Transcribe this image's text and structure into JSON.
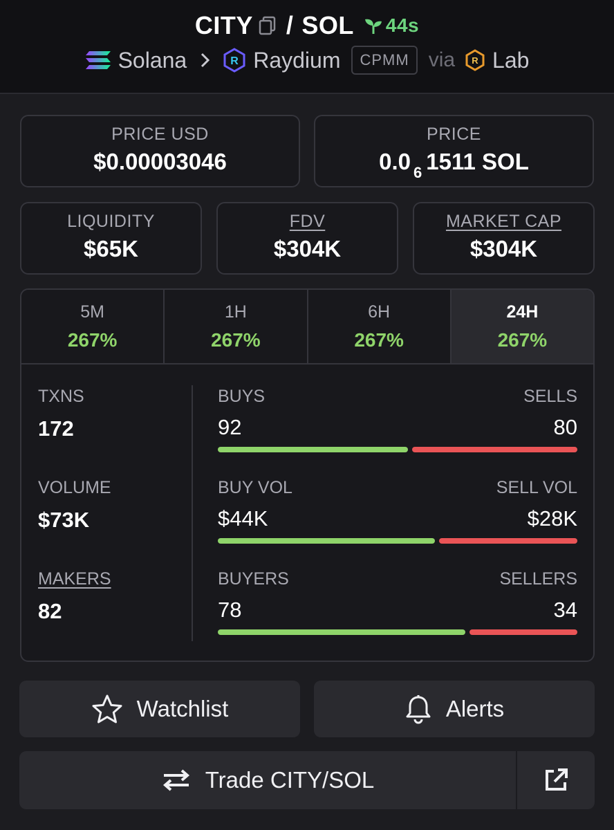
{
  "header": {
    "base_token": "CITY",
    "slash": "/",
    "quote_token": "SOL",
    "age": "44s",
    "chain": "Solana",
    "dex": "Raydium",
    "pool_type": "CPMM",
    "via_label": "via",
    "launchpad": "Lab"
  },
  "price_usd": {
    "label": "PRICE USD",
    "value": "$0.00003046"
  },
  "price": {
    "label": "PRICE",
    "prefix": "0.0",
    "zeros": "6",
    "suffix": "1511 SOL"
  },
  "liquidity": {
    "label": "LIQUIDITY",
    "value": "$65K"
  },
  "fdv": {
    "label": "FDV",
    "value": "$304K"
  },
  "market_cap": {
    "label": "MARKET CAP",
    "value": "$304K"
  },
  "tabs": [
    {
      "label": "5M",
      "value": "267%"
    },
    {
      "label": "1H",
      "value": "267%"
    },
    {
      "label": "6H",
      "value": "267%"
    },
    {
      "label": "24H",
      "value": "267%"
    }
  ],
  "active_tab": "24H",
  "metrics": {
    "txns": {
      "label": "TXNS",
      "value": "172"
    },
    "volume": {
      "label": "VOLUME",
      "value": "$73K"
    },
    "makers": {
      "label": "MAKERS",
      "value": "82"
    }
  },
  "ratios": {
    "txns": {
      "left_label": "BUYS",
      "right_label": "SELLS",
      "left_value": "92",
      "right_value": "80",
      "buy_fraction": 0.535
    },
    "volume": {
      "left_label": "BUY VOL",
      "right_label": "SELL VOL",
      "left_value": "$44K",
      "right_value": "$28K",
      "buy_fraction": 0.611
    },
    "makers": {
      "left_label": "BUYERS",
      "right_label": "SELLERS",
      "left_value": "78",
      "right_value": "34",
      "buy_fraction": 0.696
    }
  },
  "colors": {
    "buy": "#8fd46a",
    "sell": "#ea5456",
    "age": "#6dd47e"
  },
  "buttons": {
    "watchlist": "Watchlist",
    "alerts": "Alerts",
    "trade": "Trade CITY/SOL"
  }
}
